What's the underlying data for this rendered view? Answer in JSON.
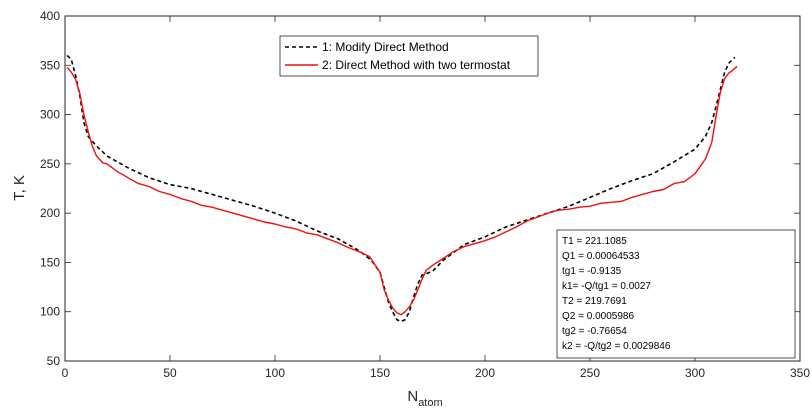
{
  "chart_data": {
    "type": "line",
    "xlabel": "N",
    "xlabel_sub": "atom",
    "ylabel": "T, K",
    "xlim": [
      0,
      350
    ],
    "ylim": [
      50,
      400
    ],
    "xticks": [
      0,
      50,
      100,
      150,
      200,
      250,
      300,
      350
    ],
    "yticks": [
      50,
      100,
      150,
      200,
      250,
      300,
      350,
      400
    ],
    "grid": false,
    "legend_position": "top-center",
    "series": [
      {
        "name": "1: Modify Direct Method",
        "style": "dashed",
        "color": "#000000",
        "x": [
          1,
          3,
          5,
          7,
          9,
          11,
          15,
          20,
          30,
          40,
          50,
          60,
          70,
          80,
          90,
          100,
          110,
          120,
          130,
          140,
          146,
          150,
          152,
          154,
          156,
          158,
          160,
          162,
          164,
          166,
          168,
          170,
          175,
          180,
          190,
          200,
          210,
          220,
          230,
          240,
          250,
          260,
          270,
          280,
          290,
          300,
          305,
          308,
          310,
          312,
          314,
          316,
          318,
          319
        ],
        "y": [
          360,
          356,
          340,
          320,
          292,
          278,
          268,
          258,
          246,
          236,
          229,
          225,
          219,
          213,
          207,
          200,
          192,
          182,
          174,
          162,
          152,
          140,
          125,
          110,
          100,
          92,
          90,
          92,
          100,
          115,
          128,
          137,
          141,
          152,
          168,
          176,
          186,
          193,
          200,
          207,
          216,
          225,
          233,
          240,
          252,
          265,
          278,
          292,
          308,
          325,
          342,
          352,
          356,
          358
        ]
      },
      {
        "name": "2: Direct Method with two termostat",
        "style": "solid",
        "color": "#ee1111",
        "x": [
          1,
          3,
          5,
          7,
          9,
          11,
          13,
          15,
          18,
          20,
          25,
          30,
          35,
          40,
          45,
          50,
          55,
          60,
          65,
          70,
          75,
          80,
          85,
          90,
          95,
          100,
          105,
          110,
          115,
          120,
          125,
          130,
          135,
          140,
          145,
          150,
          152,
          154,
          156,
          158,
          160,
          162,
          164,
          166,
          168,
          170,
          172,
          175,
          180,
          185,
          190,
          195,
          200,
          205,
          210,
          215,
          220,
          225,
          230,
          235,
          240,
          245,
          250,
          255,
          260,
          265,
          270,
          275,
          280,
          285,
          290,
          295,
          300,
          305,
          308,
          310,
          312,
          314,
          316,
          318,
          320
        ],
        "y": [
          348,
          343,
          336,
          322,
          300,
          283,
          268,
          258,
          251,
          250,
          242,
          236,
          230,
          227,
          222,
          219,
          215,
          212,
          208,
          206,
          203,
          200,
          197,
          194,
          191,
          189,
          186,
          184,
          180,
          178,
          174,
          170,
          165,
          161,
          156,
          140,
          122,
          112,
          104,
          99,
          97,
          100,
          105,
          112,
          122,
          133,
          142,
          147,
          154,
          161,
          166,
          169,
          172,
          176,
          181,
          186,
          192,
          196,
          200,
          203,
          204,
          206,
          207,
          210,
          211,
          212,
          216,
          219,
          222,
          224,
          230,
          232,
          240,
          255,
          272,
          298,
          322,
          336,
          342,
          345,
          349
        ]
      }
    ],
    "annotation_lines": [
      "T1 = 221.1085",
      "Q1 = 0.00064533",
      "tg1 =  -0.9135",
      "k1= -Q/tg1 = 0.0027",
      "T2 = 219.7691",
      "Q2 = 0.0005986",
      "tg2 = -0.76654",
      "k2 = -Q/tg2 = 0.0029846"
    ]
  }
}
